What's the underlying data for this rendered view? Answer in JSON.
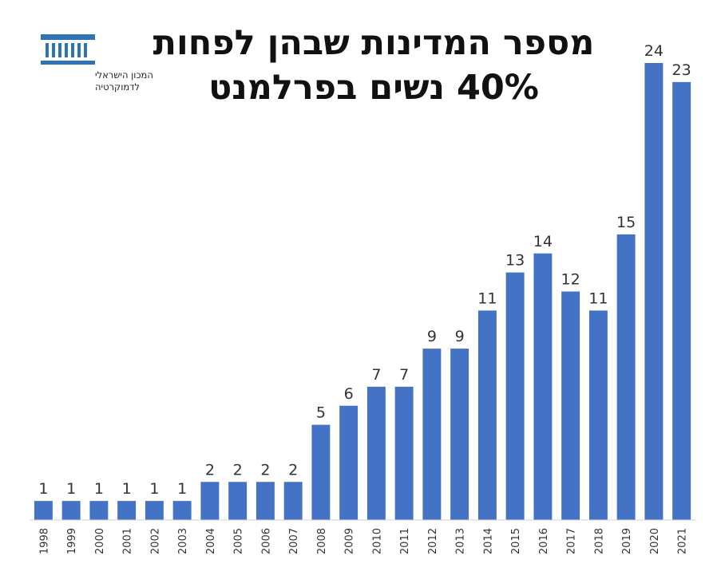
{
  "logo": {
    "line1": "המכון הישראלי",
    "line2": "לדמוקרטיה",
    "color": "#2f74b5"
  },
  "chart_data": {
    "type": "bar",
    "title_lines": [
      "מספר המדינות שבהן לפחות",
      "40% נשים בפרלמנט"
    ],
    "xlabel": "",
    "ylabel": "",
    "categories": [
      "1998",
      "1999",
      "2000",
      "2001",
      "2002",
      "2003",
      "2004",
      "2005",
      "2006",
      "2007",
      "2008",
      "2009",
      "2010",
      "2011",
      "2012",
      "2013",
      "2014",
      "2015",
      "2016",
      "2017",
      "2018",
      "2019",
      "2020",
      "2021"
    ],
    "values": [
      1,
      1,
      1,
      1,
      1,
      1,
      2,
      2,
      2,
      2,
      5,
      6,
      7,
      7,
      9,
      9,
      11,
      13,
      14,
      12,
      11,
      15,
      24,
      23
    ],
    "ylim": [
      0,
      24
    ],
    "grid": false,
    "data_labels": true,
    "bar_color": "#4472c4"
  }
}
